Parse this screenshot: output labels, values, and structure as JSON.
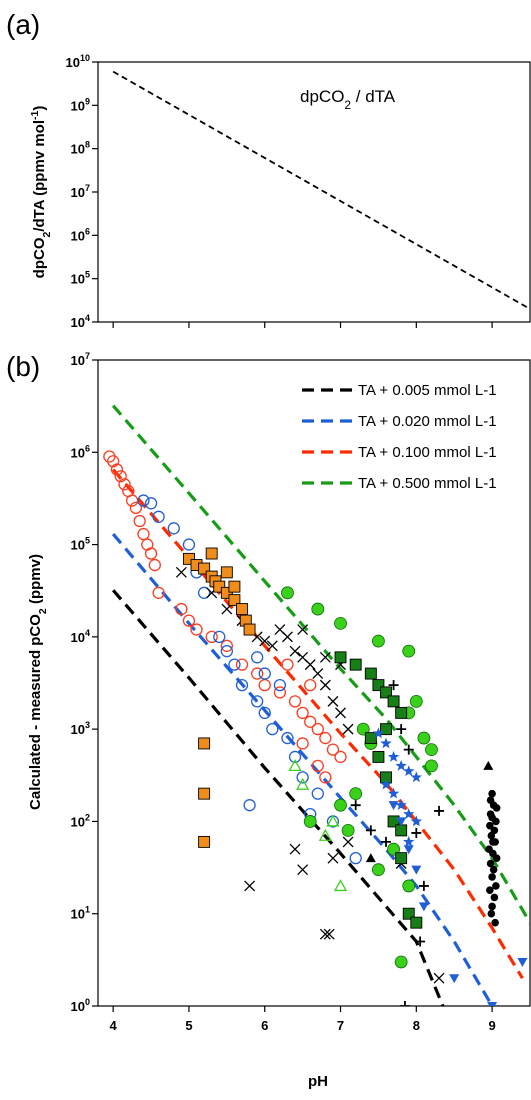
{
  "chart_data": [
    {
      "panel": "(a)",
      "type": "line",
      "annotation": "dpCO2 / dTA",
      "ylabel": "dpCO2/dTA (ppmv  mol-1)",
      "xlim": [
        3.8,
        9.5
      ],
      "ylim": [
        10000,
        10000000000
      ],
      "yscale": "log",
      "yticks": [
        "10^4",
        "10^5",
        "10^6",
        "10^7",
        "10^8",
        "10^9",
        "10^10"
      ],
      "xticks": [
        4,
        5,
        6,
        7,
        8,
        9
      ],
      "grid": false,
      "series": [
        {
          "style": "dashed",
          "color": "#000000",
          "x": [
            4.0,
            9.5
          ],
          "y": [
            6000000000,
            20000
          ]
        }
      ]
    },
    {
      "panel": "(b)",
      "type": "scatter",
      "xlabel": "pH",
      "ylabel": "Calculated - measured pCO2 (ppmv)",
      "xlim": [
        3.8,
        9.5
      ],
      "ylim": [
        1,
        10000000
      ],
      "yscale": "log",
      "yticks": [
        "10^0",
        "10^1",
        "10^2",
        "10^3",
        "10^4",
        "10^5",
        "10^6",
        "10^7"
      ],
      "xticks": [
        "4",
        "5",
        "6",
        "7",
        "8",
        "9"
      ],
      "grid": false,
      "legend_position": "top-right",
      "lines": [
        {
          "label": "TA + 0.005 mmol L-1",
          "color": "#000000",
          "x": [
            4.0,
            5.0,
            6.0,
            7.0,
            7.6,
            8.0,
            8.35
          ],
          "y": [
            32000,
            3600,
            380,
            45,
            12,
            5,
            1
          ]
        },
        {
          "label": "TA + 0.020 mmol L-1",
          "color": "#1f5fd6",
          "x": [
            4.0,
            5.0,
            6.0,
            7.0,
            7.6,
            8.0,
            8.5,
            9.0
          ],
          "y": [
            130000,
            14000,
            1600,
            180,
            50,
            20,
            5,
            1
          ]
        },
        {
          "label": "TA + 0.100 mmol L-1",
          "color": "#ff2a00",
          "x": [
            4.0,
            5.0,
            6.0,
            7.0,
            7.6,
            8.0,
            8.5,
            9.0,
            9.4
          ],
          "y": [
            650000,
            72000,
            8000,
            900,
            260,
            100,
            30,
            7,
            2
          ]
        },
        {
          "label": "TA + 0.500 mmol L-1",
          "color": "#169c16",
          "x": [
            4.0,
            5.0,
            6.0,
            7.0,
            7.6,
            8.0,
            8.5,
            9.0,
            9.5
          ],
          "y": [
            3200000,
            360000,
            40000,
            4500,
            1300,
            500,
            150,
            40,
            8
          ]
        }
      ],
      "scatter_groups": [
        {
          "marker": "circle-open",
          "color": "#ff3b1f",
          "points": [
            [
              3.95,
              900000
            ],
            [
              4.0,
              800000
            ],
            [
              4.05,
              650000
            ],
            [
              4.1,
              550000
            ],
            [
              4.15,
              450000
            ],
            [
              4.2,
              380000
            ],
            [
              4.25,
              300000
            ],
            [
              4.3,
              250000
            ],
            [
              4.35,
              180000
            ],
            [
              4.4,
              130000
            ],
            [
              4.45,
              100000
            ],
            [
              4.5,
              80000
            ],
            [
              4.55,
              60000
            ],
            [
              4.6,
              30000
            ],
            [
              4.9,
              20000
            ],
            [
              5.0,
              15000
            ],
            [
              5.1,
              12000
            ],
            [
              5.3,
              10000
            ],
            [
              5.5,
              8000
            ],
            [
              5.7,
              5000
            ],
            [
              5.9,
              4000
            ],
            [
              6.0,
              3000
            ],
            [
              6.2,
              2500
            ],
            [
              6.4,
              2000
            ],
            [
              6.5,
              1500
            ],
            [
              6.6,
              1200
            ],
            [
              6.7,
              1000
            ],
            [
              6.8,
              800
            ],
            [
              6.9,
              600
            ],
            [
              7.0,
              500
            ],
            [
              6.6,
              3000
            ],
            [
              6.3,
              5000
            ],
            [
              6.5,
              700
            ],
            [
              6.7,
              400
            ],
            [
              6.8,
              300
            ]
          ]
        },
        {
          "marker": "circle-open",
          "color": "#1f5fd6",
          "points": [
            [
              4.4,
              300000
            ],
            [
              4.5,
              280000
            ],
            [
              4.6,
              200000
            ],
            [
              4.8,
              150000
            ],
            [
              5.0,
              100000
            ],
            [
              5.1,
              50000
            ],
            [
              5.2,
              30000
            ],
            [
              5.4,
              10000
            ],
            [
              5.5,
              7000
            ],
            [
              5.6,
              5000
            ],
            [
              5.7,
              3000
            ],
            [
              5.9,
              2000
            ],
            [
              6.0,
              1500
            ],
            [
              6.1,
              1000
            ],
            [
              6.3,
              800
            ],
            [
              6.4,
              500
            ],
            [
              6.5,
              300
            ],
            [
              6.7,
              200
            ],
            [
              5.8,
              150
            ],
            [
              6.6,
              120
            ],
            [
              6.9,
              100
            ],
            [
              7.2,
              40
            ],
            [
              6.0,
              4000
            ],
            [
              6.2,
              3000
            ],
            [
              5.9,
              6000
            ]
          ]
        },
        {
          "marker": "x",
          "color": "#000000",
          "points": [
            [
              4.9,
              50000
            ],
            [
              5.1,
              60000
            ],
            [
              5.3,
              30000
            ],
            [
              5.5,
              20000
            ],
            [
              5.7,
              15000
            ],
            [
              5.9,
              10000
            ],
            [
              6.0,
              9000
            ],
            [
              6.1,
              8000
            ],
            [
              6.2,
              12000
            ],
            [
              6.3,
              10000
            ],
            [
              6.4,
              7000
            ],
            [
              6.5,
              6000
            ],
            [
              6.6,
              5000
            ],
            [
              6.7,
              4000
            ],
            [
              6.8,
              3000
            ],
            [
              6.9,
              2000
            ],
            [
              7.0,
              1500
            ],
            [
              7.1,
              1000
            ],
            [
              6.8,
              6000
            ],
            [
              7.0,
              5000
            ],
            [
              6.5,
              12000
            ],
            [
              6.4,
              50
            ],
            [
              6.5,
              30
            ],
            [
              6.9,
              40
            ],
            [
              7.1,
              60
            ],
            [
              7.8,
              35
            ],
            [
              8.3,
              2
            ],
            [
              5.8,
              20
            ],
            [
              6.8,
              6
            ],
            [
              6.85,
              6
            ]
          ]
        },
        {
          "marker": "square-filled",
          "color": "#f08c1c",
          "points": [
            [
              5.0,
              70000
            ],
            [
              5.1,
              60000
            ],
            [
              5.2,
              55000
            ],
            [
              5.3,
              45000
            ],
            [
              5.35,
              40000
            ],
            [
              5.4,
              35000
            ],
            [
              5.5,
              30000
            ],
            [
              5.6,
              25000
            ],
            [
              5.7,
              20000
            ],
            [
              5.75,
              15000
            ],
            [
              5.8,
              12000
            ],
            [
              5.3,
              80000
            ],
            [
              5.5,
              50000
            ],
            [
              5.6,
              35000
            ],
            [
              5.2,
              700
            ],
            [
              5.2,
              200
            ],
            [
              5.2,
              60
            ]
          ]
        },
        {
          "marker": "circle-filled",
          "color": "#3ad11a",
          "points": [
            [
              6.3,
              30000
            ],
            [
              6.7,
              20000
            ],
            [
              7.0,
              14000
            ],
            [
              7.5,
              9000
            ],
            [
              7.9,
              7000
            ],
            [
              8.0,
              2000
            ],
            [
              7.9,
              1500
            ],
            [
              8.1,
              800
            ],
            [
              8.2,
              600
            ],
            [
              8.2,
              400
            ],
            [
              7.3,
              1000
            ],
            [
              7.4,
              700
            ],
            [
              7.2,
              200
            ],
            [
              7.0,
              150
            ],
            [
              6.6,
              100
            ],
            [
              7.1,
              80
            ],
            [
              7.7,
              50
            ],
            [
              7.5,
              30
            ],
            [
              7.9,
              20
            ],
            [
              7.8,
              3
            ]
          ]
        },
        {
          "marker": "square-filled",
          "color": "#167f16",
          "points": [
            [
              7.0,
              6000
            ],
            [
              7.2,
              5000
            ],
            [
              7.4,
              4000
            ],
            [
              7.5,
              3000
            ],
            [
              7.6,
              2500
            ],
            [
              7.7,
              2000
            ],
            [
              7.8,
              1500
            ],
            [
              7.6,
              1000
            ],
            [
              7.4,
              800
            ],
            [
              7.5,
              500
            ],
            [
              7.6,
              300
            ],
            [
              7.7,
              100
            ],
            [
              7.8,
              80
            ],
            [
              7.8,
              40
            ],
            [
              7.9,
              10
            ],
            [
              8.0,
              8
            ]
          ]
        },
        {
          "marker": "star-filled",
          "color": "#1f5fd6",
          "points": [
            [
              7.5,
              900
            ],
            [
              7.6,
              700
            ],
            [
              7.7,
              500
            ],
            [
              7.8,
              400
            ],
            [
              7.9,
              350
            ],
            [
              8.0,
              300
            ],
            [
              7.6,
              250
            ],
            [
              7.7,
              200
            ],
            [
              7.8,
              150
            ],
            [
              7.9,
              120
            ],
            [
              8.0,
              100
            ],
            [
              7.9,
              60
            ]
          ]
        },
        {
          "marker": "triangle-down-filled",
          "color": "#1f5fd6",
          "points": [
            [
              7.8,
              100
            ],
            [
              7.9,
              50
            ],
            [
              8.0,
              30
            ],
            [
              8.1,
              12
            ],
            [
              8.5,
              2
            ],
            [
              9.0,
              1
            ],
            [
              9.4,
              3
            ],
            [
              7.7,
              150
            ]
          ]
        },
        {
          "marker": "plus",
          "color": "#000000",
          "points": [
            [
              7.7,
              3000
            ],
            [
              7.8,
              1000
            ],
            [
              7.9,
              600
            ],
            [
              7.2,
              150
            ],
            [
              7.4,
              80
            ],
            [
              7.6,
              60
            ],
            [
              8.0,
              75
            ],
            [
              8.1,
              20
            ],
            [
              8.05,
              5
            ],
            [
              8.3,
              130
            ],
            [
              7.85,
              1
            ]
          ]
        },
        {
          "marker": "triangle-open",
          "color": "#3ad11a",
          "points": [
            [
              6.4,
              400
            ],
            [
              6.5,
              250
            ],
            [
              6.9,
              100
            ],
            [
              6.8,
              70
            ],
            [
              7.0,
              20
            ]
          ]
        },
        {
          "marker": "triangle-filled",
          "color": "#000000",
          "points": [
            [
              7.4,
              40
            ],
            [
              8.95,
              400
            ]
          ]
        },
        {
          "marker": "circle-filled",
          "color": "#000000",
          "points": [
            [
              9.0,
              200
            ],
            [
              9.02,
              150
            ],
            [
              8.98,
              120
            ],
            [
              9.05,
              100
            ],
            [
              8.97,
              90
            ],
            [
              9.03,
              80
            ],
            [
              8.99,
              70
            ],
            [
              9.04,
              60
            ],
            [
              8.96,
              50
            ],
            [
              9.01,
              45
            ],
            [
              9.06,
              40
            ],
            [
              8.98,
              35
            ],
            [
              9.02,
              30
            ],
            [
              9.0,
              25
            ],
            [
              9.05,
              20
            ],
            [
              8.97,
              18
            ],
            [
              9.03,
              15
            ],
            [
              9.0,
              12
            ],
            [
              8.99,
              10
            ],
            [
              9.04,
              8
            ],
            [
              9.01,
              60
            ],
            [
              9.0,
              110
            ],
            [
              9.06,
              140
            ],
            [
              8.98,
              170
            ]
          ]
        }
      ]
    }
  ]
}
